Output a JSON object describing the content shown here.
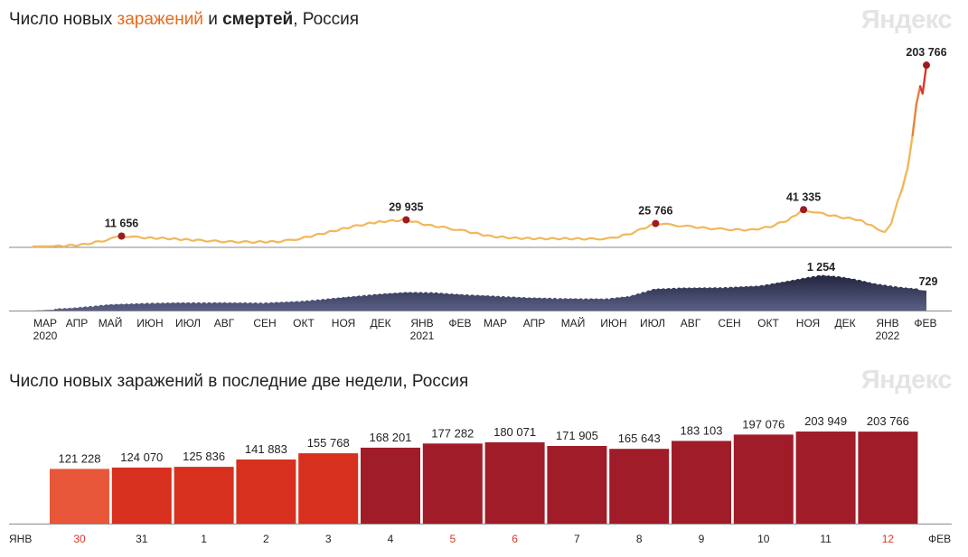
{
  "header": {
    "title1_parts": [
      "Число новых ",
      "заражений",
      " и ",
      "смертей",
      ", Россия"
    ],
    "title2": "Число новых заражений в последние две недели, Россия",
    "logo": "Яндекс"
  },
  "colors": {
    "cases_line": "#f0b85a",
    "cases_line_peak": "#d8392a",
    "deaths_area": "#5a5f86",
    "deaths_area_dark": "#22253e",
    "marker": "#9b1b1f",
    "bar_light": "#e9573a",
    "bar_mid": "#d7301f",
    "bar_dark": "#a01c28",
    "weekend_text": "#d8392a"
  },
  "chart_data": [
    {
      "type": "line",
      "series": [
        {
          "name": "заражений",
          "x": [
            "2020-03-01",
            "2020-03-20",
            "2020-04-10",
            "2020-04-25",
            "2020-05-11",
            "2020-05-25",
            "2020-06-15",
            "2020-07-10",
            "2020-08-01",
            "2020-08-25",
            "2020-09-15",
            "2020-10-01",
            "2020-10-20",
            "2020-11-10",
            "2020-11-25",
            "2020-12-05",
            "2020-12-24",
            "2021-01-10",
            "2021-01-25",
            "2021-02-10",
            "2021-03-01",
            "2021-03-20",
            "2021-04-10",
            "2021-05-01",
            "2021-05-20",
            "2021-06-05",
            "2021-06-20",
            "2021-07-01",
            "2021-07-11",
            "2021-07-25",
            "2021-08-10",
            "2021-08-25",
            "2021-09-10",
            "2021-09-25",
            "2021-10-10",
            "2021-10-25",
            "2021-11-06",
            "2021-11-20",
            "2021-12-05",
            "2021-12-20",
            "2022-01-01",
            "2022-01-10",
            "2022-01-15",
            "2022-01-20",
            "2022-01-24",
            "2022-01-28",
            "2022-02-01",
            "2022-02-04",
            "2022-02-07",
            "2022-02-09",
            "2022-02-12"
          ],
          "values": [
            0,
            200,
            2000,
            6000,
            11656,
            10000,
            9000,
            7000,
            5400,
            5000,
            5500,
            9000,
            15000,
            22000,
            26000,
            28000,
            29935,
            24000,
            21000,
            17000,
            11500,
            9400,
            8800,
            8800,
            8400,
            9000,
            14000,
            20000,
            25766,
            24000,
            22000,
            20000,
            19000,
            18500,
            22000,
            30000,
            41335,
            37000,
            33000,
            30000,
            22000,
            16000,
            25000,
            50000,
            67000,
            88000,
            125000,
            160000,
            180000,
            172000,
            203766
          ]
        }
      ],
      "categories": [
        "МАР",
        "АПР",
        "МАЙ",
        "ИЮН",
        "ИЮЛ",
        "АВГ",
        "СЕН",
        "ОКТ",
        "НОЯ",
        "ДЕК",
        "ЯНВ",
        "ФЕВ",
        "МАР",
        "АПР",
        "МАЙ",
        "ИЮН",
        "ИЮЛ",
        "АВГ",
        "СЕН",
        "ОКТ",
        "НОЯ",
        "ДЕК",
        "ЯНВ",
        "ФЕВ"
      ],
      "years": [
        {
          "at": 0,
          "label": "2020"
        },
        {
          "at": 10,
          "label": "2021"
        },
        {
          "at": 22,
          "label": "2022"
        }
      ],
      "annotations": [
        {
          "x": "2020-05-11",
          "value": 11656,
          "label": "11 656"
        },
        {
          "x": "2020-12-24",
          "value": 29935,
          "label": "29 935"
        },
        {
          "x": "2021-07-11",
          "value": 25766,
          "label": "25 766"
        },
        {
          "x": "2021-11-06",
          "value": 41335,
          "label": "41 335"
        },
        {
          "x": "2022-02-12",
          "value": 203766,
          "label": "203 766"
        }
      ],
      "ylim": [
        0,
        215000
      ]
    },
    {
      "type": "area",
      "series": [
        {
          "name": "смертей",
          "x": [
            "2020-03-01",
            "2020-04-01",
            "2020-05-01",
            "2020-06-01",
            "2020-07-01",
            "2020-08-01",
            "2020-09-01",
            "2020-10-01",
            "2020-11-01",
            "2020-12-01",
            "2020-12-25",
            "2021-01-15",
            "2021-02-01",
            "2021-03-01",
            "2021-04-01",
            "2021-05-01",
            "2021-06-01",
            "2021-06-20",
            "2021-07-10",
            "2021-08-01",
            "2021-09-01",
            "2021-10-01",
            "2021-10-20",
            "2021-11-10",
            "2021-11-20",
            "2021-12-05",
            "2021-12-20",
            "2022-01-01",
            "2022-01-15",
            "2022-01-25",
            "2022-02-12"
          ],
          "values": [
            0,
            50,
            180,
            230,
            250,
            250,
            240,
            300,
            430,
            560,
            630,
            620,
            560,
            500,
            430,
            400,
            390,
            480,
            750,
            790,
            800,
            860,
            1000,
            1180,
            1254,
            1200,
            1080,
            950,
            860,
            800,
            729
          ]
        }
      ],
      "annotations": [
        {
          "x": "2021-11-20",
          "value": 1254,
          "label": "1 254"
        },
        {
          "x": "2022-02-12",
          "value": 729,
          "label": "729"
        }
      ],
      "ylim": [
        0,
        1254
      ]
    },
    {
      "type": "bar",
      "categories": [
        "30",
        "31",
        "1",
        "2",
        "3",
        "4",
        "5",
        "6",
        "7",
        "8",
        "9",
        "10",
        "11",
        "12"
      ],
      "values": [
        121228,
        124070,
        125836,
        141883,
        155768,
        168201,
        177282,
        180071,
        171905,
        165643,
        183103,
        197076,
        203949,
        203766
      ],
      "labels": [
        "121 228",
        "124 070",
        "125 836",
        "141 883",
        "155 768",
        "168 201",
        "177 282",
        "180 071",
        "171 905",
        "165 643",
        "183 103",
        "197 076",
        "203 949",
        "203 766"
      ],
      "weekend_categories": [
        "30",
        "5",
        "6",
        "12"
      ],
      "month_left": "ЯНВ",
      "month_right": "ФЕВ",
      "ylim": [
        0,
        225000
      ]
    }
  ]
}
